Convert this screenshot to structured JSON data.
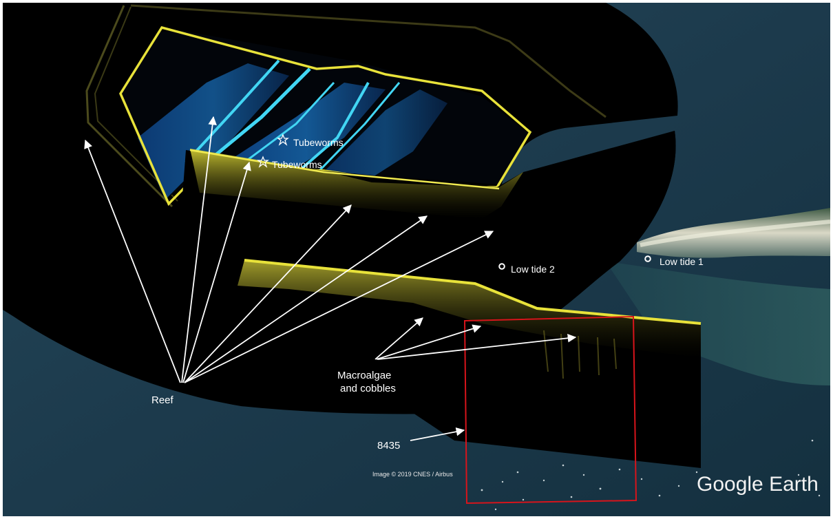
{
  "map": {
    "type": "satellite-imagery-with-sidescan-sonar-overlay",
    "labels": {
      "tubeworms_1": "Tubeworms",
      "tubeworms_2": "Tubeworms",
      "low_tide_2": "Low tide 2",
      "low_tide_1": "Low tide 1",
      "reef": "Reef",
      "macroalgae_line1": "Macroalgae",
      "macroalgae_line2": "and cobbles",
      "survey_line": "8435"
    },
    "credit": "Image © 2019 CNES / Airbus",
    "brand": {
      "name": "Google",
      "product": "Earth"
    },
    "colors": {
      "water": "#1d3848",
      "sonar_black": "#000000",
      "sonar_yellow": "#e8e23a",
      "sonar_blue": "#1f8ff0",
      "sonar_cyan": "#42d6f4",
      "arrow": "#ffffff",
      "highlight_box": "#d8141b",
      "shore": "#d9d8c6"
    },
    "icons": {
      "tubeworm_marker": "star-icon",
      "low_tide_marker": "circle-icon"
    }
  }
}
